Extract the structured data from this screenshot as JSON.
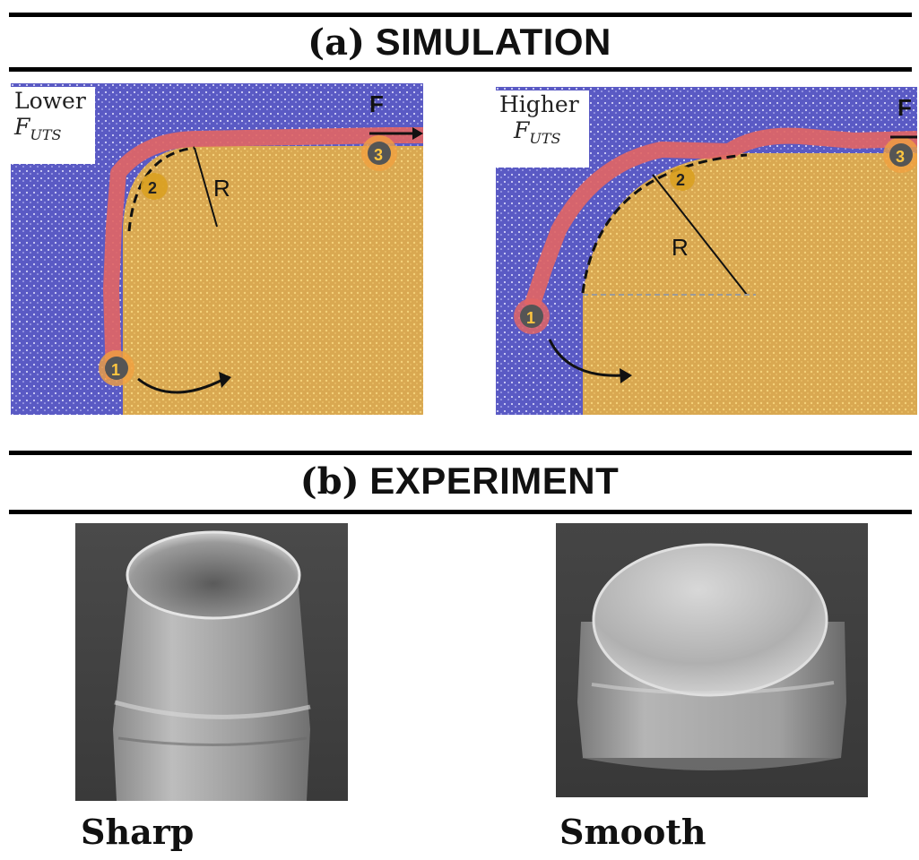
{
  "section_a": {
    "tag": "(a)",
    "title": "SIMULATION"
  },
  "section_b": {
    "tag": "(b)",
    "title": "EXPERIMENT"
  },
  "left_panel": {
    "label_top": "Lower",
    "label_f": "F",
    "label_sub": "UTS",
    "force_label": "F",
    "radius_label": "R",
    "markers": [
      "1",
      "2",
      "3"
    ]
  },
  "right_panel": {
    "label_top": "Higher",
    "label_f": "F",
    "label_sub": "UTS",
    "force_label": "F",
    "radius_label": "R",
    "markers": [
      "1",
      "2",
      "3"
    ]
  },
  "captions": {
    "left": "Sharp",
    "right": "Smooth"
  },
  "colors": {
    "matrix": "#5a5ac4",
    "pillar": "#e6b85c",
    "layer": "#e06565",
    "marker": "#555555"
  }
}
